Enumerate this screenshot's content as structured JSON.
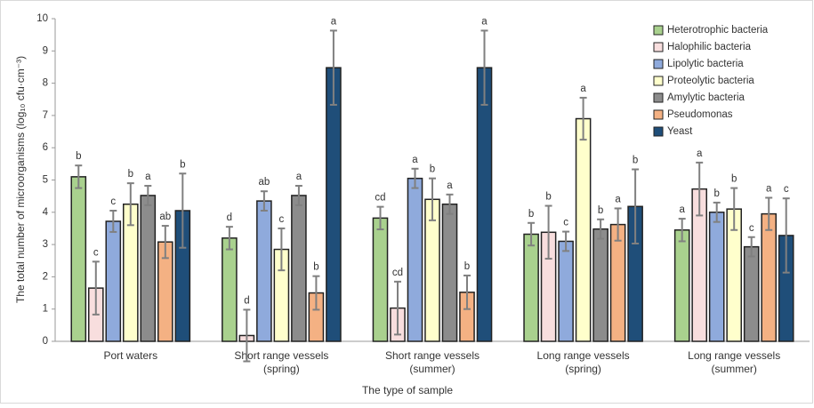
{
  "chart_data": {
    "type": "bar",
    "x_label": "The type of sample",
    "y_label": "The total number of microorganisms (log₁₀ cfu·cm⁻³)",
    "categories": [
      "Port waters",
      "Short range vessels\n(spring)",
      "Short range vessels\n(summer)",
      "Long range vessels\n(spring)",
      "Long range vessels\n(summer)"
    ],
    "ylim": [
      0,
      10
    ],
    "yticks": [
      0,
      1,
      2,
      3,
      4,
      5,
      6,
      7,
      8,
      9,
      10
    ],
    "legend": "top-right",
    "series": [
      {
        "name": "Heterotrophic bacteria",
        "color": "#a9d18e",
        "values": [
          5.1,
          3.2,
          3.82,
          3.32,
          3.45
        ],
        "errors": [
          0.35,
          0.35,
          0.35,
          0.35,
          0.35
        ],
        "letters": [
          "b",
          "d",
          "cd",
          "b",
          "a"
        ]
      },
      {
        "name": "Halophilic bacteria",
        "color": "#f8dede",
        "values": [
          1.65,
          0.18,
          1.03,
          3.38,
          4.72
        ],
        "errors": [
          0.82,
          0.8,
          0.82,
          0.82,
          0.82
        ],
        "letters": [
          "c",
          "d",
          "cd",
          "b",
          "a"
        ]
      },
      {
        "name": "Lipolytic bacteria",
        "color": "#8faadc",
        "values": [
          3.72,
          4.35,
          5.05,
          3.1,
          4.0
        ],
        "errors": [
          0.33,
          0.3,
          0.3,
          0.3,
          0.3
        ],
        "letters": [
          "c",
          "ab",
          "a",
          "c",
          "b"
        ]
      },
      {
        "name": "Proteolytic bacteria",
        "color": "#ffffcc",
        "values": [
          4.25,
          2.85,
          4.4,
          6.9,
          4.1
        ],
        "errors": [
          0.65,
          0.65,
          0.65,
          0.65,
          0.65
        ],
        "letters": [
          "b",
          "c",
          "b",
          "a",
          "b"
        ]
      },
      {
        "name": "Amylytic bacteria",
        "color": "#8c8c8c",
        "values": [
          4.52,
          4.52,
          4.25,
          3.48,
          2.93
        ],
        "errors": [
          0.3,
          0.3,
          0.3,
          0.3,
          0.3
        ],
        "letters": [
          "a",
          "a",
          "a",
          "b",
          "c"
        ]
      },
      {
        "name": "Pseudomonas",
        "color": "#f4b183",
        "values": [
          3.08,
          1.5,
          1.52,
          3.62,
          3.95
        ],
        "errors": [
          0.5,
          0.52,
          0.52,
          0.5,
          0.5
        ],
        "letters": [
          "ab",
          "b",
          "b",
          "a",
          "a"
        ]
      },
      {
        "name": "Yeast",
        "color": "#1f4e79",
        "values": [
          4.05,
          8.48,
          8.48,
          4.18,
          3.28
        ],
        "errors": [
          1.15,
          1.15,
          1.15,
          1.15,
          1.15
        ],
        "letters": [
          "b",
          "a",
          "a",
          "b",
          "c"
        ]
      }
    ]
  }
}
